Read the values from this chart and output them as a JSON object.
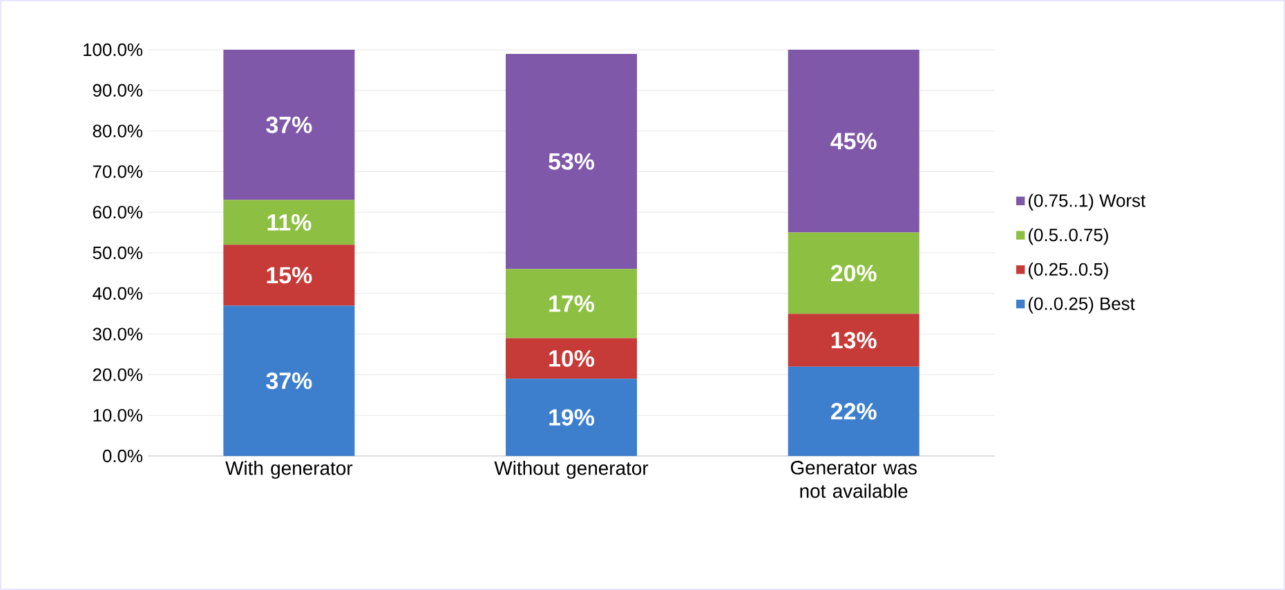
{
  "chart_data": {
    "type": "bar",
    "stacked": true,
    "categories": [
      "With generator",
      "Without generator",
      "Generator was not available"
    ],
    "series": [
      {
        "name": "(0..0.25) Best",
        "color": "#3d7fcc",
        "values": [
          37,
          19,
          22
        ],
        "value_labels": [
          "37%",
          "19%",
          "22%"
        ]
      },
      {
        "name": "(0.25..0.5)",
        "color": "#c63a37",
        "values": [
          15,
          10,
          13
        ],
        "value_labels": [
          "15%",
          "10%",
          "13%"
        ]
      },
      {
        "name": "(0.5..0.75)",
        "color": "#8dc042",
        "values": [
          11,
          17,
          20
        ],
        "value_labels": [
          "11%",
          "17%",
          "20%"
        ]
      },
      {
        "name": "(0.75..1) Worst",
        "color": "#7f58a9",
        "values": [
          37,
          53,
          45
        ],
        "value_labels": [
          "37%",
          "53%",
          "45%"
        ]
      }
    ],
    "ylim": [
      0,
      100
    ],
    "yticks": [
      {
        "value": 0,
        "label": "0.0%"
      },
      {
        "value": 10,
        "label": "10.0%"
      },
      {
        "value": 20,
        "label": "20.0%"
      },
      {
        "value": 30,
        "label": "30.0%"
      },
      {
        "value": 40,
        "label": "40.0%"
      },
      {
        "value": 50,
        "label": "50.0%"
      },
      {
        "value": 60,
        "label": "60.0%"
      },
      {
        "value": 70,
        "label": "70.0%"
      },
      {
        "value": 80,
        "label": "80.0%"
      },
      {
        "value": 90,
        "label": "90.0%"
      },
      {
        "value": 100,
        "label": "100.0%"
      }
    ],
    "grid": "y",
    "legend": "right"
  }
}
